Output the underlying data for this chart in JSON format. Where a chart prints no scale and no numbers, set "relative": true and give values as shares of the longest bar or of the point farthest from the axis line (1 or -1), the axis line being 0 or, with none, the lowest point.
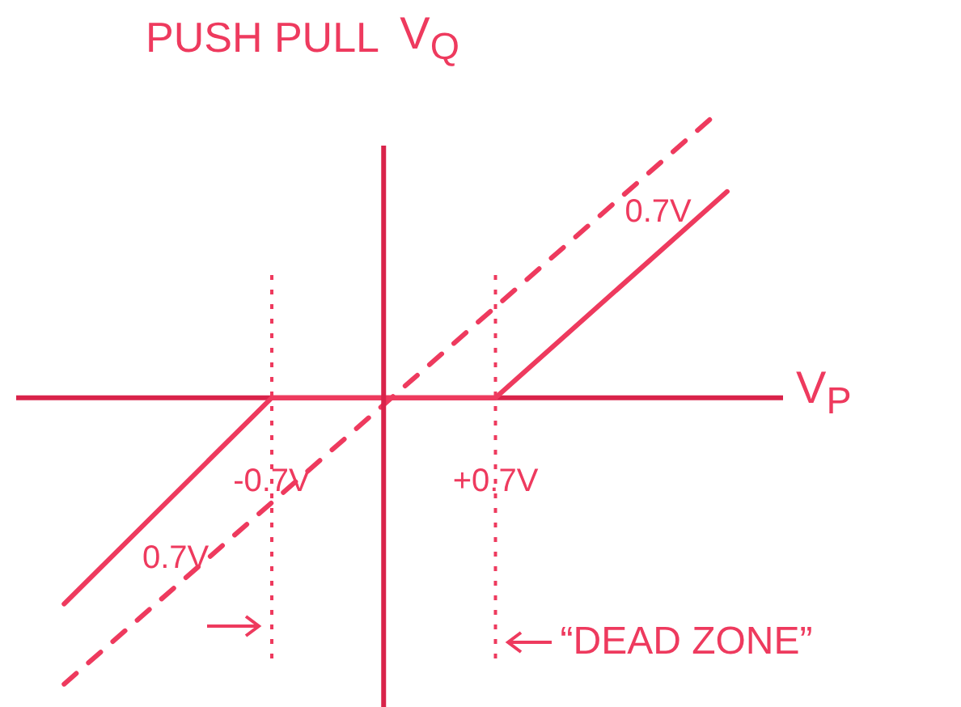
{
  "chart_data": {
    "type": "line",
    "title": "PUSH PULL",
    "xlabel": "V$_{P}$",
    "ylabel": "V$_{Q}$",
    "xlim": [
      -2.3,
      2.5
    ],
    "xticks": [
      {
        "value": -0.7,
        "label": "-0.7V"
      },
      {
        "value": 0.7,
        "label": "+0.7V"
      }
    ],
    "relative": true,
    "grid": false,
    "legend": false,
    "marker": "none",
    "series": [
      {
        "color": "#ee3a5e",
        "x": [
          -2.0,
          -0.7,
          0.7,
          2.15
        ],
        "values": [
          -0.72,
          0,
          0,
          0.72
        ],
        "line_style": "solid"
      },
      {
        "color": "#ee3a5e",
        "x": [
          -2.0,
          2.1
        ],
        "values": [
          -1,
          1
        ],
        "line_style": "dashed"
      }
    ],
    "ref_lines": [
      {
        "axis": "x",
        "value": 0,
        "color": "#d9234a",
        "line_style": "solid"
      },
      {
        "axis": "x",
        "value": -0.7,
        "color": "#ee3a5e",
        "line_style": "dotted"
      },
      {
        "axis": "x",
        "value": 0.7,
        "color": "#ee3a5e",
        "line_style": "dotted"
      }
    ],
    "annotations": [
      "0.7V",
      "0.7V",
      "“DEAD ZONE”"
    ]
  }
}
